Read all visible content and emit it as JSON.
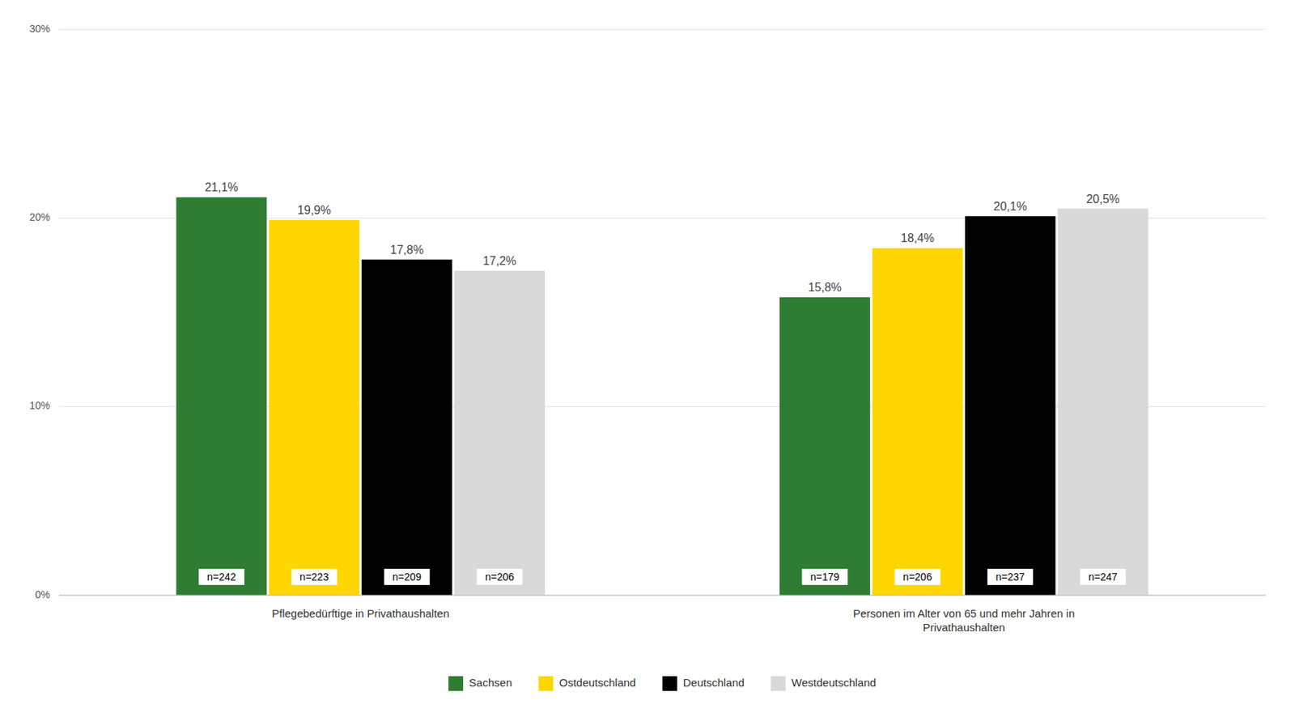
{
  "chart_data": {
    "type": "bar",
    "categories": [
      "Pflegebedürftige in Privathaushalten",
      "Personen im Alter von 65 und mehr Jahren in\nPrivathaushalten"
    ],
    "series": [
      {
        "name": "Sachsen",
        "color": "#2e7d32",
        "values": [
          21.1,
          15.8
        ],
        "value_labels": [
          "21,1%",
          "15,8%"
        ],
        "n_labels": [
          "n=242",
          "n=179"
        ]
      },
      {
        "name": "Ostdeutschland",
        "color": "#ffd600",
        "values": [
          19.9,
          18.4
        ],
        "value_labels": [
          "19,9%",
          "18,4%"
        ],
        "n_labels": [
          "n=223",
          "n=206"
        ]
      },
      {
        "name": "Deutschland",
        "color": "#000000",
        "values": [
          17.8,
          20.1
        ],
        "value_labels": [
          "17,8%",
          "20,1%"
        ],
        "n_labels": [
          "n=209",
          "n=237"
        ]
      },
      {
        "name": "Westdeutschland",
        "color": "#d9d9d9",
        "values": [
          17.2,
          20.5
        ],
        "value_labels": [
          "17,2%",
          "20,5%"
        ],
        "n_labels": [
          "n=206",
          "n=247"
        ]
      }
    ],
    "ylim": [
      0,
      30
    ],
    "yticks": [
      {
        "value": 0,
        "label": "0%"
      },
      {
        "value": 10,
        "label": "10%"
      },
      {
        "value": 20,
        "label": "20%"
      },
      {
        "value": 30,
        "label": "30%"
      }
    ],
    "grid": true,
    "legend": "bottom",
    "data_labels": true
  }
}
